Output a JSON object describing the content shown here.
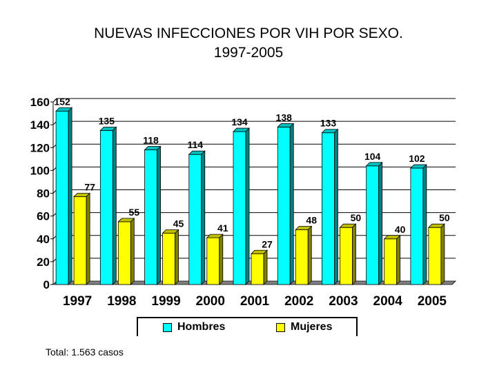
{
  "chart_data": {
    "type": "bar",
    "title": "NUEVAS INFECCIONES POR VIH POR SEXO.",
    "subtitle": "1997-2005",
    "categories": [
      "1997",
      "1998",
      "1999",
      "2000",
      "2001",
      "2002",
      "2003",
      "2004",
      "2005"
    ],
    "series": [
      {
        "name": "Hombres",
        "color": "#00FFFF",
        "values": [
          152,
          135,
          118,
          114,
          134,
          138,
          133,
          104,
          102
        ]
      },
      {
        "name": "Mujeres",
        "color": "#FFFF00",
        "values": [
          77,
          55,
          45,
          41,
          27,
          48,
          50,
          40,
          50
        ]
      }
    ],
    "ylim": [
      0,
      160
    ],
    "yticks": [
      0,
      20,
      40,
      60,
      80,
      100,
      120,
      140,
      160
    ],
    "grid": true,
    "legend": "bottom",
    "note": "Total: 1.563 casos"
  }
}
